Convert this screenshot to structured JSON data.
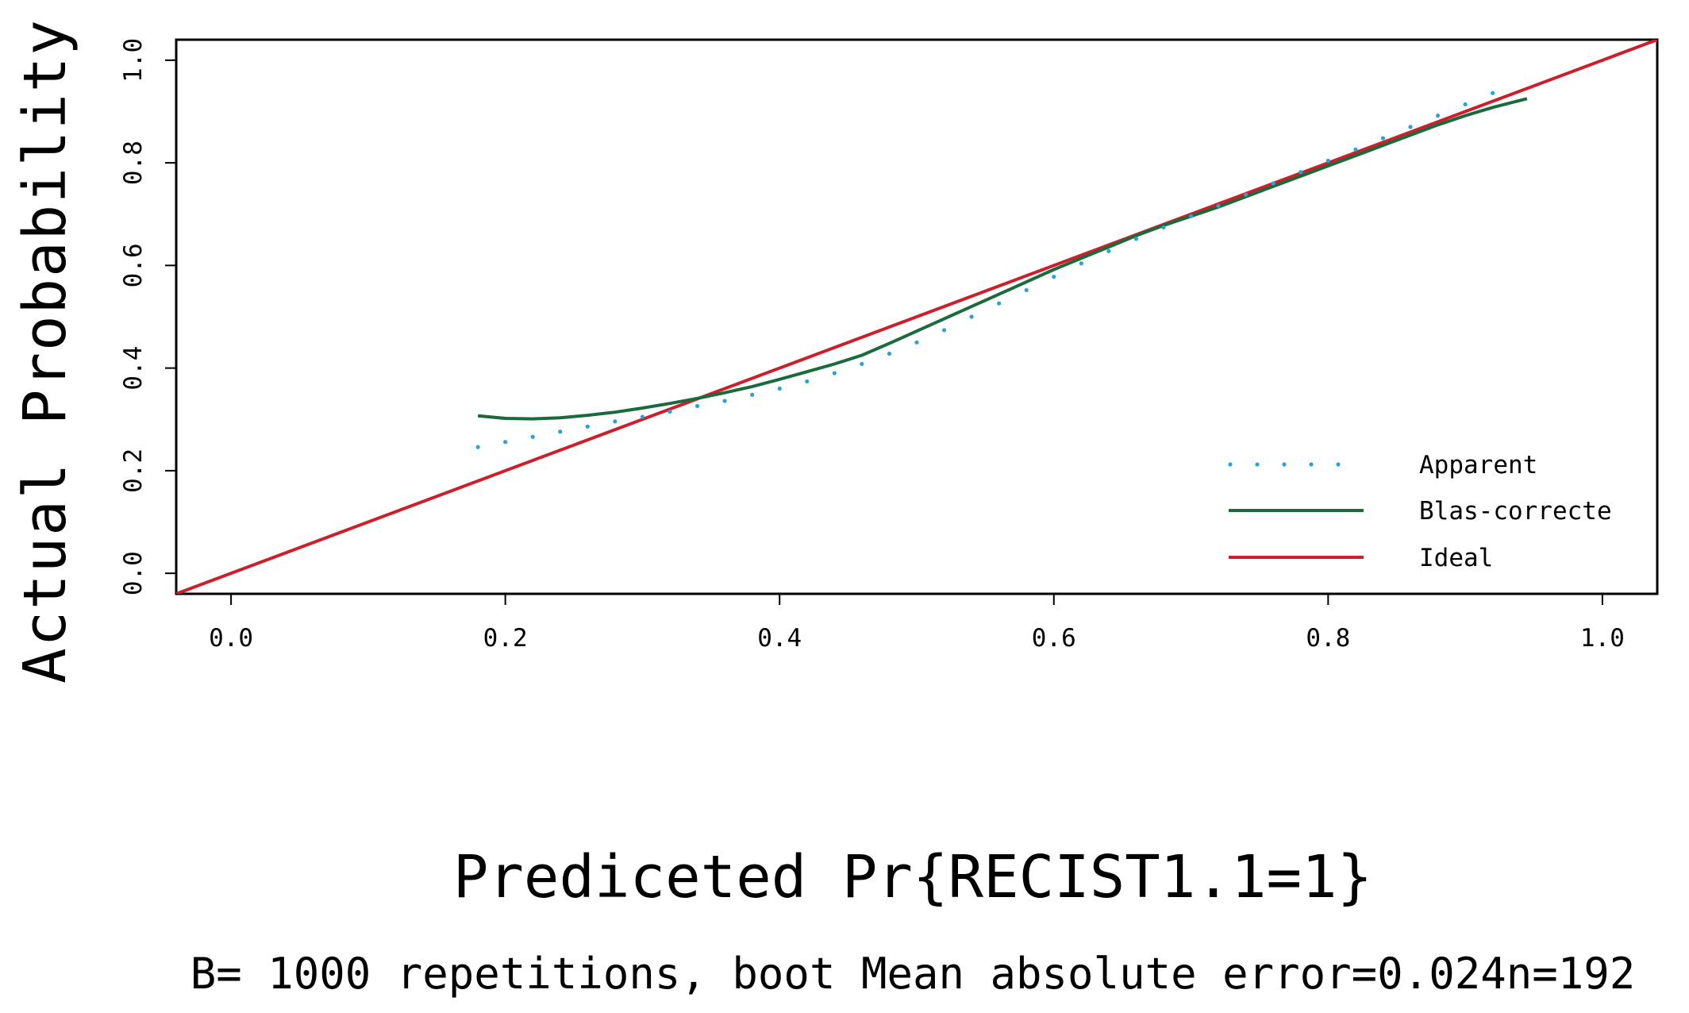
{
  "chart_data": {
    "type": "line",
    "ylabel": "Actual Probability",
    "xlabel": "Prediceted Pr{RECIST1.1=1}",
    "footnote": "B= 1000 repetitions, boot  Mean absolute error=0.024n=192",
    "xlim": [
      -0.04,
      1.04
    ],
    "ylim": [
      -0.04,
      1.04
    ],
    "xticks": [
      0.0,
      0.2,
      0.4,
      0.6,
      0.8,
      1.0
    ],
    "yticks": [
      0.0,
      0.2,
      0.4,
      0.6,
      0.8,
      1.0
    ],
    "xtick_labels": [
      "0.0",
      "0.2",
      "0.4",
      "0.6",
      "0.8",
      "1.0"
    ],
    "ytick_labels": [
      "0.0",
      "0.2",
      "0.4",
      "0.6",
      "0.8",
      "1.0"
    ],
    "grid": false,
    "legend_position": "bottom-right",
    "series": [
      {
        "name": "Apparent",
        "style": "dotted",
        "color": "#29a3d6",
        "x": [
          0.18,
          0.2,
          0.22,
          0.24,
          0.26,
          0.28,
          0.3,
          0.32,
          0.34,
          0.36,
          0.38,
          0.4,
          0.42,
          0.44,
          0.46,
          0.48,
          0.5,
          0.52,
          0.54,
          0.56,
          0.58,
          0.6,
          0.62,
          0.64,
          0.66,
          0.68,
          0.7,
          0.72,
          0.74,
          0.76,
          0.78,
          0.8,
          0.82,
          0.84,
          0.86,
          0.88,
          0.9,
          0.92
        ],
        "y": [
          0.246,
          0.256,
          0.266,
          0.276,
          0.286,
          0.296,
          0.305,
          0.315,
          0.326,
          0.336,
          0.348,
          0.36,
          0.374,
          0.39,
          0.408,
          0.428,
          0.45,
          0.474,
          0.5,
          0.526,
          0.552,
          0.578,
          0.604,
          0.628,
          0.652,
          0.674,
          0.696,
          0.716,
          0.738,
          0.76,
          0.782,
          0.804,
          0.826,
          0.848,
          0.87,
          0.892,
          0.914,
          0.936
        ]
      },
      {
        "name": "Blas-correcte",
        "style": "solid",
        "color": "#1a6b3c",
        "x": [
          0.18,
          0.2,
          0.22,
          0.24,
          0.26,
          0.28,
          0.3,
          0.32,
          0.34,
          0.36,
          0.38,
          0.4,
          0.42,
          0.44,
          0.46,
          0.48,
          0.5,
          0.52,
          0.54,
          0.56,
          0.58,
          0.6,
          0.62,
          0.64,
          0.66,
          0.68,
          0.7,
          0.72,
          0.74,
          0.76,
          0.78,
          0.8,
          0.82,
          0.84,
          0.86,
          0.88,
          0.9,
          0.92,
          0.945
        ],
        "y": [
          0.307,
          0.302,
          0.301,
          0.303,
          0.308,
          0.314,
          0.322,
          0.331,
          0.341,
          0.352,
          0.364,
          0.378,
          0.393,
          0.408,
          0.425,
          0.448,
          0.472,
          0.496,
          0.52,
          0.544,
          0.568,
          0.592,
          0.614,
          0.636,
          0.658,
          0.678,
          0.696,
          0.714,
          0.734,
          0.754,
          0.774,
          0.794,
          0.814,
          0.834,
          0.854,
          0.874,
          0.892,
          0.908,
          0.925
        ]
      },
      {
        "name": "Ideal",
        "style": "solid",
        "color": "#cc1f2b",
        "x": [
          -0.04,
          1.04
        ],
        "y": [
          -0.04,
          1.04
        ]
      }
    ]
  }
}
